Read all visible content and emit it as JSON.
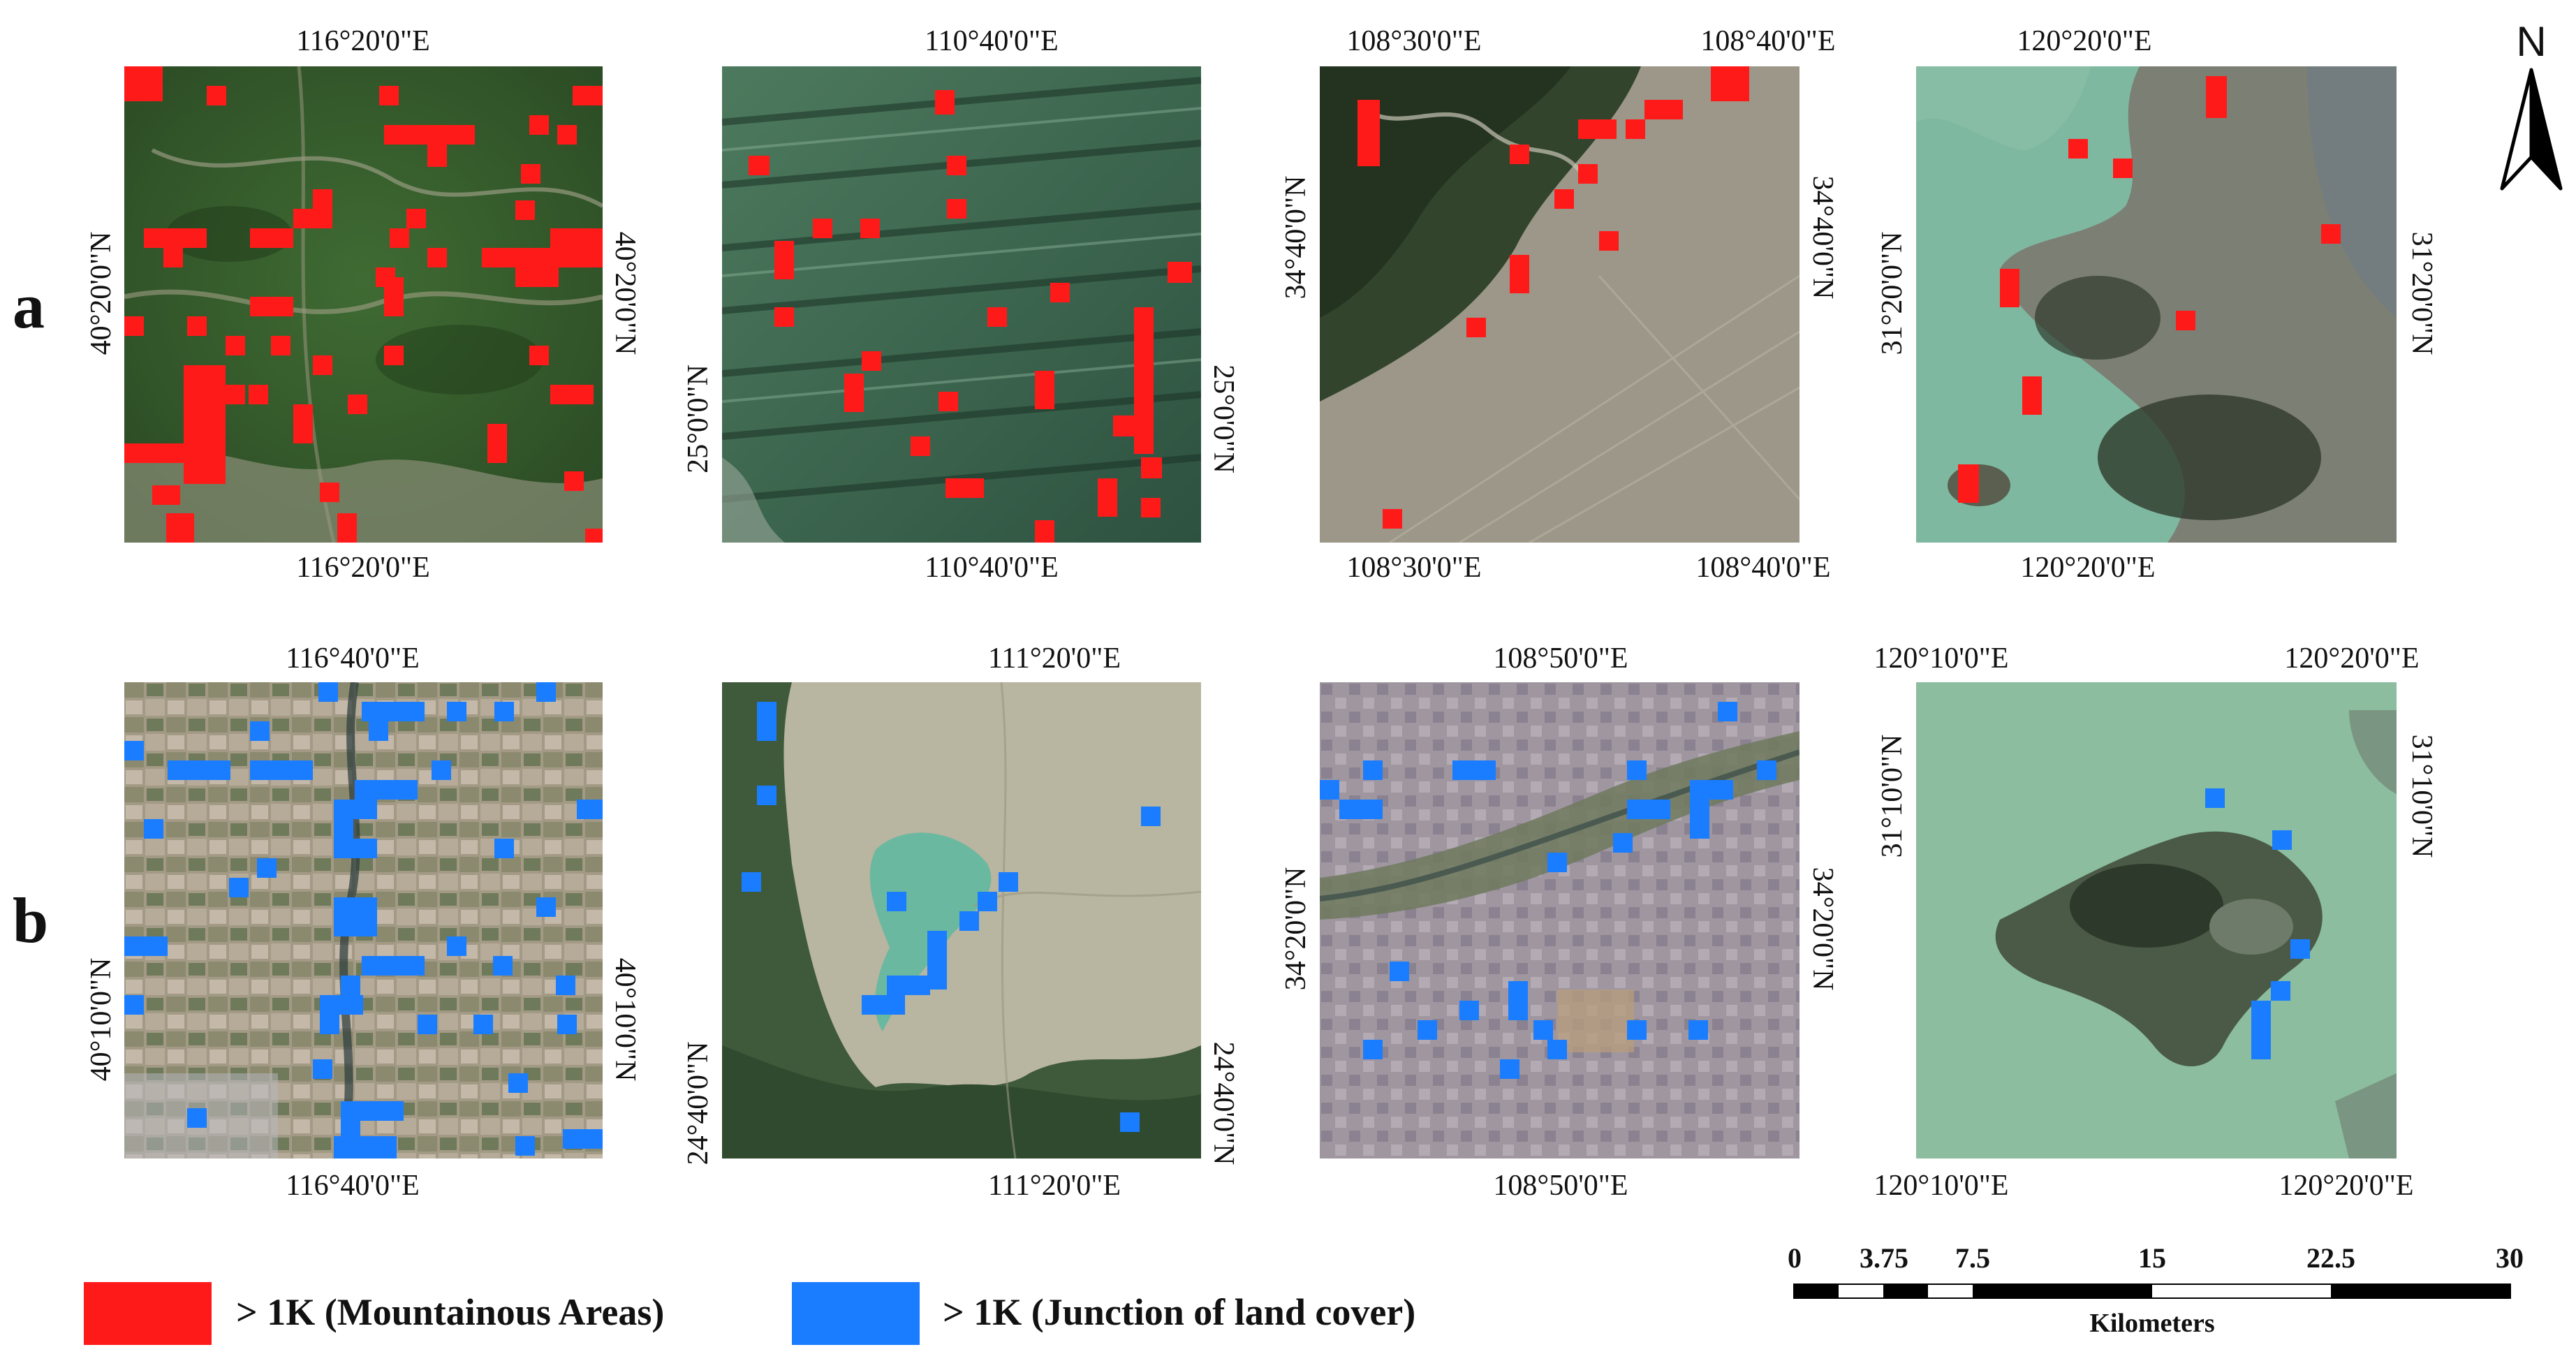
{
  "rows": [
    {
      "label": "a"
    },
    {
      "label": "b"
    }
  ],
  "panels": [
    {
      "id": "a1",
      "theme": "forest",
      "top": "116°20'0\"E",
      "bottom": "116°20'0\"E",
      "left": "40°20'0\"N",
      "right": "40°20'0\"N",
      "pixel_color": "#ff1a1a"
    },
    {
      "id": "a2",
      "theme": "mountain",
      "top": "110°40'0\"E",
      "bottom": "110°40'0\"E",
      "left": "25°0'0\"N",
      "right": "25°0'0\"N",
      "pixel_color": "#ff1a1a"
    },
    {
      "id": "a3",
      "theme": "plain",
      "top_a": "108°30'0\"E",
      "top_b": "108°40'0\"E",
      "bottom_a": "108°30'0\"E",
      "bottom_b": "108°40'0\"E",
      "left": "34°40'0\"N",
      "right": "34°40'0\"N",
      "pixel_color": "#ff1a1a"
    },
    {
      "id": "a4",
      "theme": "lake",
      "top": "120°20'0\"E",
      "bottom": "120°20'0\"E",
      "left": "31°20'0\"N",
      "right": "31°20'0\"N",
      "pixel_color": "#ff1a1a"
    },
    {
      "id": "b1",
      "theme": "farmland",
      "top": "116°40'0\"E",
      "bottom": "116°40'0\"E",
      "left": "40°10'0\"N",
      "right": "40°10'0\"N",
      "pixel_color": "#1a7cff"
    },
    {
      "id": "b2",
      "theme": "reservoir",
      "top": "111°20'0\"E",
      "bottom": "111°20'0\"E",
      "left": "24°40'0\"N",
      "right": "24°40'0\"N",
      "pixel_color": "#1a7cff"
    },
    {
      "id": "b3",
      "theme": "city",
      "top": "108°50'0\"E",
      "bottom": "108°50'0\"E",
      "left": "34°20'0\"N",
      "right": "34°20'0\"N",
      "pixel_color": "#1a7cff"
    },
    {
      "id": "b4",
      "theme": "island",
      "top_a": "120°10'0\"E",
      "top_b": "120°20'0\"E",
      "bottom_a": "120°10'0\"E",
      "bottom_b": "120°20'0\"E",
      "left": "31°10'0\"N",
      "right": "31°10'0\"N",
      "pixel_color": "#1a7cff"
    }
  ],
  "legend": [
    {
      "label": "> 1K (Mountainous Areas)",
      "color": "#ff1a1a"
    },
    {
      "label": "> 1K (Junction of land cover)",
      "color": "#1a7cff"
    }
  ],
  "scale": {
    "ticks": [
      "0",
      "3.75",
      "7.5",
      "15",
      "22.5",
      "30"
    ],
    "unit": "Kilometers"
  },
  "north": {
    "label": "N"
  }
}
